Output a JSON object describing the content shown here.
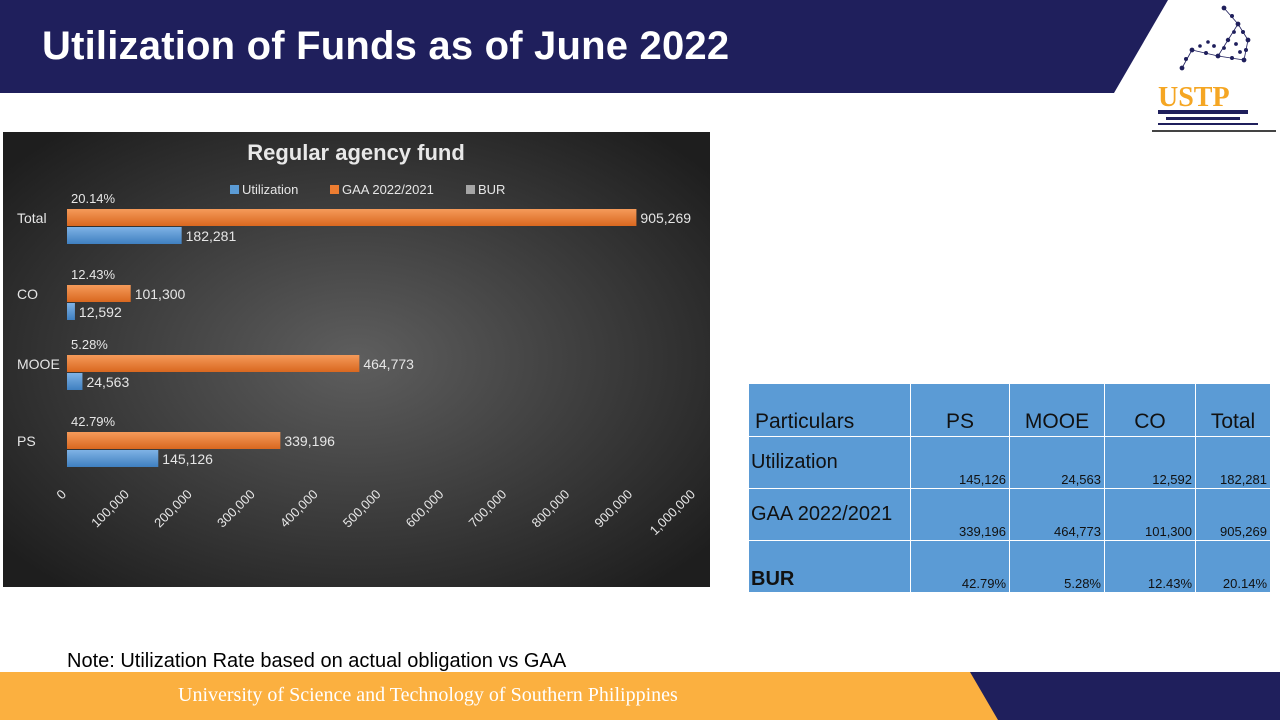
{
  "header": {
    "title": "Utilization of Funds as of June 2022",
    "band_color": "#1f1f5c",
    "logo_text": "USTP"
  },
  "chart_data": {
    "type": "bar",
    "orientation": "horizontal",
    "title": "Regular agency fund",
    "categories": [
      "Total",
      "CO",
      "MOOE",
      "PS"
    ],
    "series": [
      {
        "name": "Utilization",
        "color": "#5b9bd5",
        "values": [
          182281,
          12592,
          24563,
          145126
        ],
        "value_labels": [
          "182,281",
          "12,592",
          "24,563",
          "145,126"
        ]
      },
      {
        "name": "GAA 2022/2021",
        "color": "#ed7d31",
        "values": [
          905269,
          101300,
          464773,
          339196
        ],
        "value_labels": [
          "905,269",
          "101,300",
          "464,773",
          "339,196"
        ]
      },
      {
        "name": "BUR",
        "color": "#a5a5a5",
        "values": [
          20.14,
          12.43,
          5.28,
          42.79
        ],
        "value_labels": [
          "20.14%",
          "12.43%",
          "5.28%",
          "42.79%"
        ]
      }
    ],
    "xlim": [
      0,
      1000000
    ],
    "x_ticks": [
      "0",
      "100,000",
      "200,000",
      "300,000",
      "400,000",
      "500,000",
      "600,000",
      "700,000",
      "800,000",
      "900,000",
      "1,000,000"
    ],
    "legend_position": "top",
    "grid": false,
    "background": "dark radial gradient"
  },
  "table": {
    "headers": [
      "Particulars",
      "PS",
      "MOOE",
      "CO",
      "Total"
    ],
    "rows": [
      {
        "label": "Utilization",
        "cells": [
          "145,126",
          "24,563",
          "12,592",
          "182,281"
        ]
      },
      {
        "label": "GAA 2022/2021",
        "cells": [
          "339,196",
          "464,773",
          "101,300",
          "905,269"
        ]
      },
      {
        "label": "BUR",
        "cells": [
          "42.79%",
          "5.28%",
          "12.43%",
          "20.14%"
        ]
      }
    ],
    "background_color": "#5b9bd5"
  },
  "note": "Note: Utilization Rate based on actual obligation vs GAA",
  "footer": {
    "text": "University of Science and Technology of Southern Philippines",
    "band_color": "#fbb040",
    "accent_color": "#1f1f5c"
  }
}
